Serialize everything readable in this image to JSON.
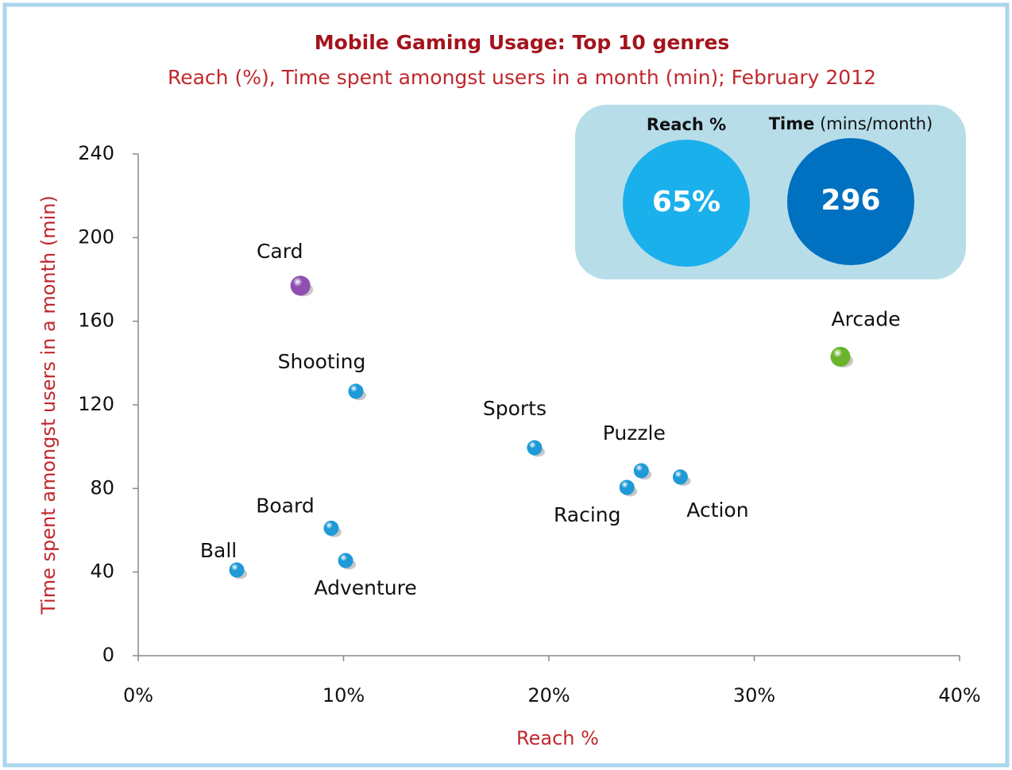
{
  "chart_data": {
    "type": "scatter",
    "title": "Mobile Gaming Usage: Top 10 genres",
    "subtitle": "Reach (%), Time spent amongst users in a month (min); February 2012",
    "x_label": "Reach %",
    "y_label": "Time spent amongst users in a month (min)",
    "labels": [
      "Card",
      "Shooting",
      "Sports",
      "Puzzle",
      "Racing",
      "Action",
      "Arcade",
      "Board",
      "Ball",
      "Adventure"
    ],
    "x": [
      7.9,
      10.6,
      19.3,
      24.5,
      23.8,
      26.4,
      34.2,
      9.4,
      4.8,
      10.1
    ],
    "values": [
      177,
      126.5,
      99.5,
      88.5,
      80.5,
      85.5,
      143,
      61,
      41,
      45.5
    ],
    "colors": [
      "#8e4fb0",
      "#1e9ad6",
      "#1e9ad6",
      "#1e9ad6",
      "#1e9ad6",
      "#1e9ad6",
      "#6ab42d",
      "#1e9ad6",
      "#1e9ad6",
      "#1e9ad6"
    ],
    "xlim": [
      0,
      40
    ],
    "xticks": [
      {
        "value": 0,
        "label": "0%"
      },
      {
        "value": 10,
        "label": "10%"
      },
      {
        "value": 20,
        "label": "20%"
      },
      {
        "value": 30,
        "label": "30%"
      },
      {
        "value": 40,
        "label": "40%"
      }
    ],
    "ylim": [
      0,
      240
    ],
    "yticks": [
      0,
      40,
      80,
      120,
      160,
      200,
      240
    ],
    "summary": {
      "reach": {
        "label": "Reach %",
        "value": 65,
        "value_label": "65%",
        "color": "#1ab0ec"
      },
      "time": {
        "label": "Time",
        "unit": "(mins/month)",
        "value": 296,
        "color": "#0070c0"
      }
    }
  }
}
